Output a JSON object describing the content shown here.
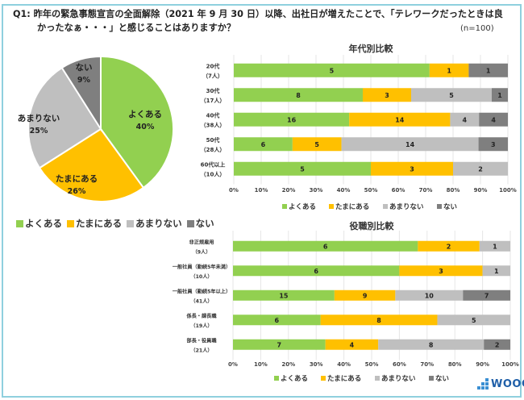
{
  "question": {
    "line1": "Q1: 昨年の緊急事態宣言の全面解除（2021 年 9 月 30 日）以降、出社日が増えたことで、「テレワークだったときは良",
    "line2": "かったなぁ・・・」と感じることはありますか？",
    "sample": "(n=100)"
  },
  "colors": {
    "often": "#92d050",
    "sometimes": "#ffc000",
    "rarely": "#bfbfbf",
    "never": "#7f7f7f",
    "frame": "#8fd0de",
    "grid": "#e6e6e6"
  },
  "legend": [
    {
      "key": "often",
      "label": "よくある"
    },
    {
      "key": "sometimes",
      "label": "たまにある"
    },
    {
      "key": "rarely",
      "label": "あまりない"
    },
    {
      "key": "never",
      "label": "ない"
    }
  ],
  "logo": {
    "text": "WOOC"
  },
  "chart_data": [
    {
      "type": "pie",
      "title": "",
      "categories": [
        "よくある",
        "たまにある",
        "あまりない",
        "ない"
      ],
      "values": [
        40,
        26,
        25,
        9
      ],
      "labels": [
        "40%",
        "26%",
        "25%",
        "9%"
      ],
      "legend_position": "bottom"
    },
    {
      "type": "bar",
      "stacked": "percent",
      "orientation": "horizontal",
      "title": "年代別比較",
      "categories": [
        {
          "name": "20代",
          "count": "（7人）"
        },
        {
          "name": "30代",
          "count": "（17人）"
        },
        {
          "name": "40代",
          "count": "（38人）"
        },
        {
          "name": "50代",
          "count": "（28人）"
        },
        {
          "name": "60代以上",
          "count": "（10人）"
        }
      ],
      "series": [
        {
          "name": "よくある",
          "key": "often",
          "values": [
            5,
            8,
            16,
            6,
            5
          ]
        },
        {
          "name": "たまにある",
          "key": "sometimes",
          "values": [
            1,
            3,
            14,
            5,
            3
          ]
        },
        {
          "name": "あまりない",
          "key": "rarely",
          "values": [
            0,
            5,
            4,
            14,
            2
          ]
        },
        {
          "name": "ない",
          "key": "never",
          "values": [
            1,
            1,
            4,
            3,
            0
          ]
        }
      ],
      "xticks": [
        "0%",
        "10%",
        "20%",
        "30%",
        "40%",
        "50%",
        "60%",
        "70%",
        "80%",
        "90%",
        "100%"
      ],
      "xlim": [
        0,
        100
      ],
      "grid": true,
      "legend_position": "bottom"
    },
    {
      "type": "bar",
      "stacked": "percent",
      "orientation": "horizontal",
      "title": "役職別比較",
      "categories": [
        {
          "name": "非正規雇用",
          "count": "（9人）"
        },
        {
          "name": "一般社員（勤続5年未満）",
          "count": "（10人）"
        },
        {
          "name": "一般社員（勤続5年以上）",
          "count": "（41人）"
        },
        {
          "name": "係長・課長職",
          "count": "（19人）"
        },
        {
          "name": "部長・役員職",
          "count": "（21人）"
        }
      ],
      "series": [
        {
          "name": "よくある",
          "key": "often",
          "values": [
            6,
            6,
            15,
            6,
            7
          ]
        },
        {
          "name": "たまにある",
          "key": "sometimes",
          "values": [
            2,
            3,
            9,
            8,
            4
          ]
        },
        {
          "name": "あまりない",
          "key": "rarely",
          "values": [
            1,
            1,
            10,
            5,
            8
          ]
        },
        {
          "name": "ない",
          "key": "never",
          "values": [
            0,
            0,
            7,
            0,
            2
          ]
        }
      ],
      "xticks": [
        "0%",
        "10%",
        "20%",
        "30%",
        "40%",
        "50%",
        "60%",
        "70%",
        "80%",
        "90%",
        "100%"
      ],
      "xlim": [
        0,
        100
      ],
      "grid": true,
      "legend_position": "bottom"
    }
  ]
}
